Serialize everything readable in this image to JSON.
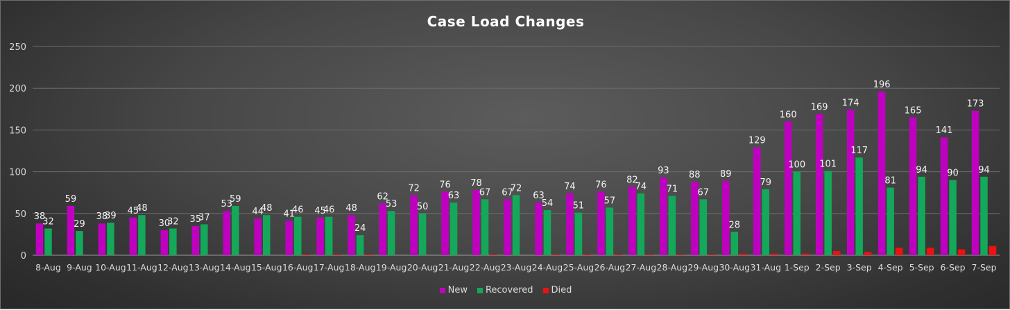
{
  "chart_data": {
    "type": "bar",
    "title": "Case Load Changes",
    "categories": [
      "8-Aug",
      "9-Aug",
      "10-Aug",
      "11-Aug",
      "12-Aug",
      "13-Aug",
      "14-Aug",
      "15-Aug",
      "16-Aug",
      "17-Aug",
      "18-Aug",
      "19-Aug",
      "20-Aug",
      "21-Aug",
      "22-Aug",
      "23-Aug",
      "24-Aug",
      "25-Aug",
      "26-Aug",
      "27-Aug",
      "28-Aug",
      "29-Aug",
      "30-Aug",
      "31-Aug",
      "1-Sep",
      "2-Sep",
      "3-Sep",
      "4-Sep",
      "5-Sep",
      "6-Sep",
      "7-Sep"
    ],
    "series": [
      {
        "name": "New",
        "color": "#c000c0",
        "values": [
          38,
          59,
          38,
          45,
          30,
          35,
          53,
          44,
          41,
          45,
          48,
          62,
          72,
          76,
          78,
          67,
          63,
          74,
          76,
          82,
          93,
          88,
          89,
          129,
          160,
          169,
          174,
          196,
          165,
          141,
          173
        ]
      },
      {
        "name": "Recovered",
        "color": "#14a85a",
        "values": [
          32,
          29,
          39,
          48,
          32,
          37,
          59,
          48,
          46,
          46,
          24,
          53,
          50,
          63,
          67,
          72,
          54,
          51,
          57,
          74,
          71,
          67,
          28,
          79,
          100,
          101,
          117,
          81,
          94,
          90,
          94
        ]
      },
      {
        "name": "Died",
        "color": "#ee1111",
        "values": [
          0,
          0,
          0,
          0,
          0,
          0,
          0,
          0,
          1,
          1,
          1,
          0,
          0,
          0,
          1,
          0,
          1,
          1,
          1,
          1,
          1,
          1,
          2,
          2,
          2,
          5,
          4,
          9,
          9,
          7,
          11
        ]
      }
    ],
    "data_labels": [
      "New",
      "Recovered"
    ],
    "ylim": [
      0,
      250
    ],
    "yticks": [
      0,
      50,
      100,
      150,
      200,
      250
    ],
    "grid": true,
    "legend_position": "bottom"
  }
}
